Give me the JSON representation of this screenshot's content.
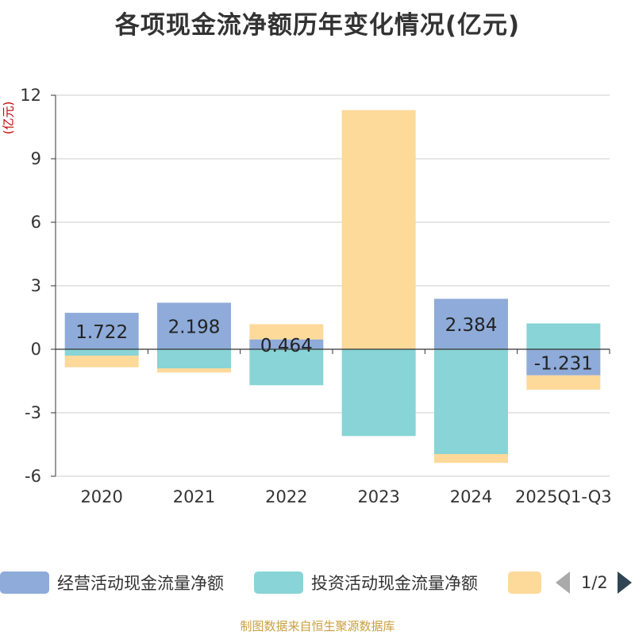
{
  "title": "各项现金流净额历年变化情况(亿元)",
  "unit_label": "(亿元)",
  "source": "制图数据来自恒生聚源数据库",
  "legend_pager": "1/2",
  "colors": {
    "operating": "#8eabd9",
    "investing": "#88d4d6",
    "financing": "#fdd99a",
    "grid": "#cccccc",
    "axis": "#333333",
    "text": "#333333"
  },
  "chart_data": {
    "type": "bar",
    "stacked": true,
    "title": "各项现金流净额历年变化情况(亿元)",
    "ylabel": "(亿元)",
    "ylim": [
      -6,
      12
    ],
    "yticks": [
      -6,
      -3,
      0,
      3,
      6,
      9,
      12
    ],
    "categories": [
      "2020",
      "2021",
      "2022",
      "2023",
      "2024",
      "2025Q1-Q3"
    ],
    "series": [
      {
        "name": "经营活动现金流量净额",
        "key": "operating",
        "values": [
          1.722,
          2.198,
          0.464,
          0.0,
          2.384,
          -1.231
        ],
        "labels": [
          "1.722",
          "2.198",
          "0.464",
          "",
          "2.384",
          "-1.231"
        ]
      },
      {
        "name": "投资活动现金流量净额",
        "key": "investing",
        "values": [
          -0.3,
          -0.9,
          -1.7,
          -4.1,
          -4.95,
          1.22
        ]
      },
      {
        "name": "",
        "key": "financing",
        "values": [
          -0.55,
          -0.2,
          0.72,
          11.3,
          -0.42,
          -0.68
        ]
      }
    ]
  }
}
